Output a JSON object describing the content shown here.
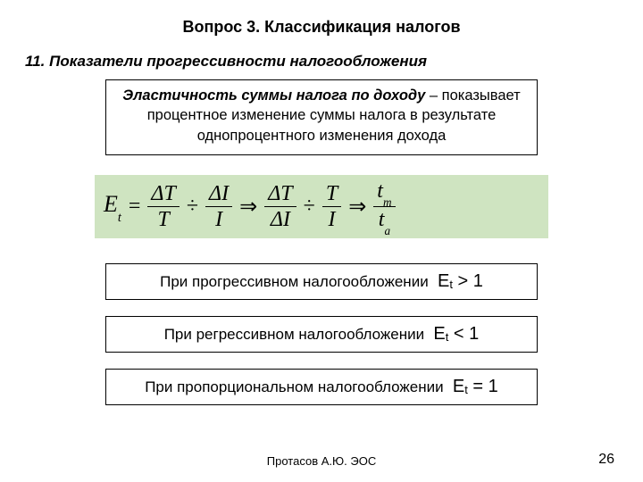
{
  "title": "Вопрос 3. Классификация налогов",
  "subtitle": "11. Показатели прогрессивности налогообложения",
  "definition": {
    "term": "Эластичность суммы налога по доходу",
    "dash": " – ",
    "body": "показывает процентное изменение суммы налога в результате однопроцентного изменения дохода"
  },
  "formula": {
    "background_color": "#cfe4c1",
    "lhs_var": "E",
    "lhs_sub": "t",
    "frac1": {
      "num": "ΔT",
      "den": "T"
    },
    "frac2": {
      "num": "ΔI",
      "den": "I"
    },
    "frac3": {
      "num": "ΔT",
      "den": "ΔI"
    },
    "frac4": {
      "num": "T",
      "den": "I"
    },
    "frac5": {
      "num": "t",
      "num_sub": "m",
      "den": "t",
      "den_sub": "a"
    }
  },
  "conditions": [
    {
      "text": "При прогрессивном налогообложении",
      "var": "E",
      "sub": "t",
      "rel": " > 1"
    },
    {
      "text": "При регрессивном налогообложении",
      "var": "E",
      "sub": "t",
      "rel": " < 1"
    },
    {
      "text": "При пропорциональном налогообложении",
      "var": "E",
      "sub": "t",
      "rel": " = 1"
    }
  ],
  "footer": "Протасов А.Ю. ЭОС",
  "page_number": "26"
}
